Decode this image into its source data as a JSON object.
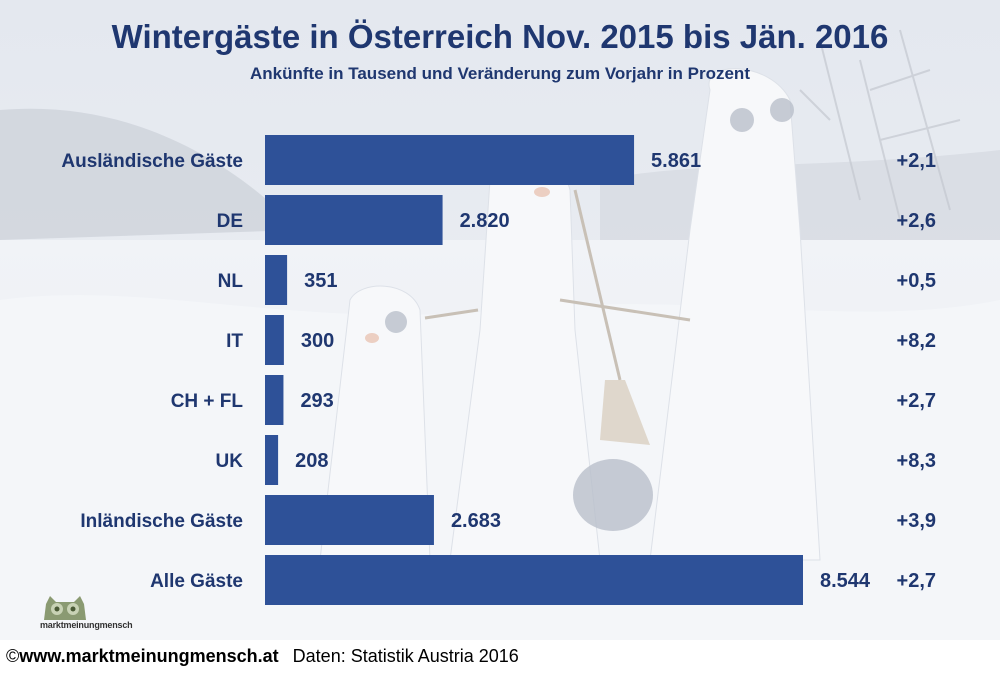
{
  "header": {
    "title": "Wintergäste in Österreich Nov. 2015 bis Jän. 2016",
    "subtitle": "Ankünfte in Tausend und Veränderung zum Vorjahr in Prozent"
  },
  "footer": {
    "copyright_symbol": "©",
    "site": "www.marktmeinungmensch.at",
    "source": "Daten: Statistik Austria 2016"
  },
  "logo": {
    "text": "marktmeinungmensch",
    "icon": "owl-icon"
  },
  "colors": {
    "bar": "#2e5198",
    "text": "#1f3770"
  },
  "chart_data": {
    "type": "bar",
    "orientation": "horizontal",
    "title": "Wintergäste in Österreich Nov. 2015 bis Jän. 2016",
    "subtitle": "Ankünfte in Tausend und Veränderung zum Vorjahr in Prozent",
    "categories": [
      "Ausländische Gäste",
      "DE",
      "NL",
      "IT",
      "CH + FL",
      "UK",
      "Inländische Gäste",
      "Alle Gäste"
    ],
    "values": [
      5861,
      2820,
      351,
      300,
      293,
      208,
      2683,
      8544
    ],
    "value_labels": [
      "5.861",
      "2.820",
      "351",
      "300",
      "293",
      "208",
      "2.683",
      "8.544"
    ],
    "changes": [
      2.1,
      2.6,
      0.5,
      8.2,
      2.7,
      8.3,
      3.9,
      2.7
    ],
    "change_labels": [
      "+2,1",
      "+2,6",
      "+0,5",
      "+8,2",
      "+2,7",
      "+8,3",
      "+3,9",
      "+2,7"
    ],
    "unit": "Tausend",
    "xlim": [
      0,
      8544
    ],
    "grid": false,
    "legend": "none"
  }
}
